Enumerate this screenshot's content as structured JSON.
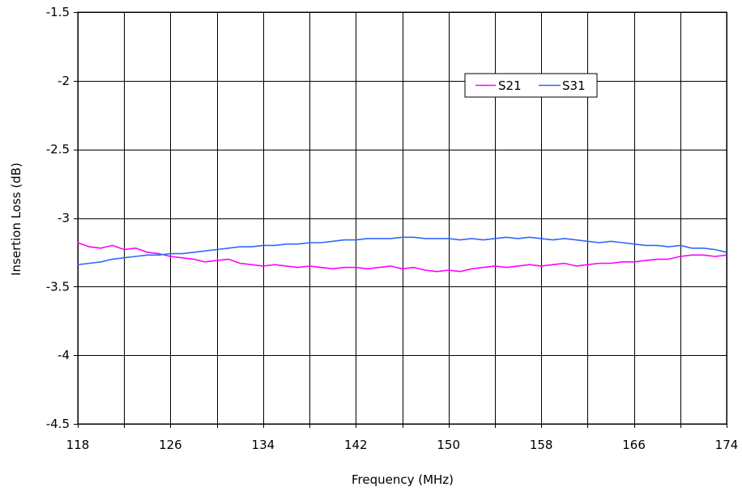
{
  "chart_data": {
    "type": "line",
    "title": "",
    "xlabel": "Frequency (MHz)",
    "ylabel": "Insertion Loss (dB)",
    "xlim": [
      118,
      174
    ],
    "ylim": [
      -4.5,
      -1.5
    ],
    "x_ticks": [
      118,
      122,
      126,
      130,
      134,
      138,
      142,
      146,
      150,
      154,
      158,
      162,
      166,
      170,
      174
    ],
    "x_tick_labels": [
      "118",
      "126",
      "134",
      "142",
      "150",
      "158",
      "166",
      "174"
    ],
    "x_tick_label_values": [
      118,
      126,
      134,
      142,
      150,
      158,
      166,
      174
    ],
    "y_ticks": [
      -4.5,
      -4,
      -3.5,
      -3,
      -2.5,
      -2,
      -1.5
    ],
    "y_tick_labels": [
      "-4.5",
      "-4",
      "-3.5",
      "-3",
      "-2.5",
      "-2",
      "-1.5"
    ],
    "grid": true,
    "legend_position": "top-right",
    "x": [
      118,
      119,
      120,
      121,
      122,
      123,
      124,
      125,
      126,
      127,
      128,
      129,
      130,
      131,
      132,
      133,
      134,
      135,
      136,
      137,
      138,
      139,
      140,
      141,
      142,
      143,
      144,
      145,
      146,
      147,
      148,
      149,
      150,
      151,
      152,
      153,
      154,
      155,
      156,
      157,
      158,
      159,
      160,
      161,
      162,
      163,
      164,
      165,
      166,
      167,
      168,
      169,
      170,
      171,
      172,
      173,
      174
    ],
    "series": [
      {
        "name": "S21",
        "color": "#ff00ff",
        "values": [
          -3.18,
          -3.21,
          -3.22,
          -3.2,
          -3.23,
          -3.22,
          -3.25,
          -3.26,
          -3.28,
          -3.29,
          -3.3,
          -3.32,
          -3.31,
          -3.3,
          -3.33,
          -3.34,
          -3.35,
          -3.34,
          -3.35,
          -3.36,
          -3.35,
          -3.36,
          -3.37,
          -3.36,
          -3.36,
          -3.37,
          -3.36,
          -3.35,
          -3.37,
          -3.36,
          -3.38,
          -3.39,
          -3.38,
          -3.39,
          -3.37,
          -3.36,
          -3.35,
          -3.36,
          -3.35,
          -3.34,
          -3.35,
          -3.34,
          -3.33,
          -3.35,
          -3.34,
          -3.33,
          -3.33,
          -3.32,
          -3.32,
          -3.31,
          -3.3,
          -3.3,
          -3.28,
          -3.27,
          -3.27,
          -3.28,
          -3.27
        ]
      },
      {
        "name": "S31",
        "color": "#3366ff",
        "values": [
          -3.34,
          -3.33,
          -3.32,
          -3.3,
          -3.29,
          -3.28,
          -3.27,
          -3.27,
          -3.26,
          -3.26,
          -3.25,
          -3.24,
          -3.23,
          -3.22,
          -3.21,
          -3.21,
          -3.2,
          -3.2,
          -3.19,
          -3.19,
          -3.18,
          -3.18,
          -3.17,
          -3.16,
          -3.16,
          -3.15,
          -3.15,
          -3.15,
          -3.14,
          -3.14,
          -3.15,
          -3.15,
          -3.15,
          -3.16,
          -3.15,
          -3.16,
          -3.15,
          -3.14,
          -3.15,
          -3.14,
          -3.15,
          -3.16,
          -3.15,
          -3.16,
          -3.17,
          -3.18,
          -3.17,
          -3.18,
          -3.19,
          -3.2,
          -3.2,
          -3.21,
          -3.2,
          -3.22,
          -3.22,
          -3.23,
          -3.25
        ]
      }
    ]
  }
}
